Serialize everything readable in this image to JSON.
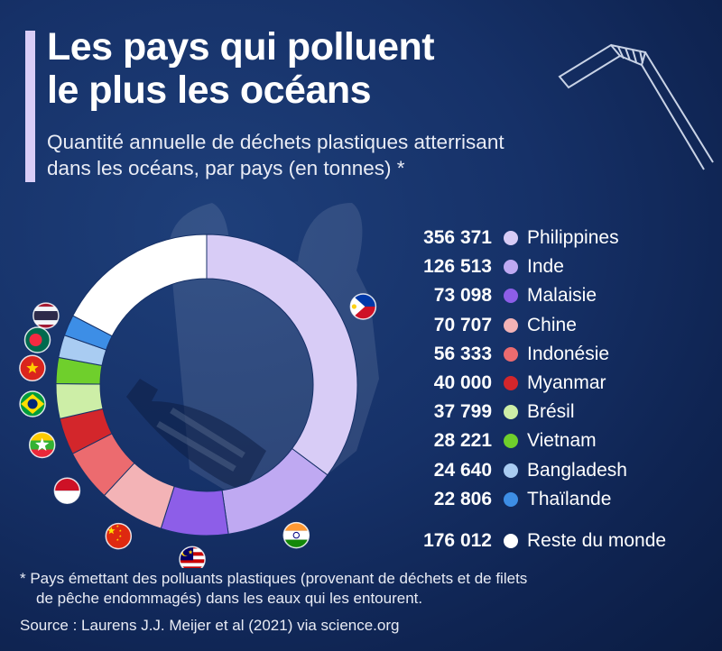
{
  "title_line1": "Les pays qui polluent",
  "title_line2": "le plus les océans",
  "subtitle_line1": "Quantité annuelle de déchets plastiques atterrisant",
  "subtitle_line2": "dans les océans, par pays (en tonnes) *",
  "footnote_line1": "* Pays émettant des polluants plastiques (provenant de déchets et de filets",
  "footnote_line2": "de pêche endommagés) dans les eaux qui les entourent.",
  "source": "Source : Laurens J.J. Meijer et al (2021) via science.org",
  "legend_values": [
    "356 371",
    "126 513",
    "73 098",
    "70 707",
    "56 333",
    "40 000",
    "37 799",
    "28 221",
    "24 640",
    "22 806",
    "176 012"
  ],
  "chart_data": {
    "type": "pie",
    "title": "Les pays qui polluent le plus les océans",
    "subtitle": "Quantité annuelle de déchets plastiques atterrisant dans les océans, par pays (en tonnes) *",
    "unit": "tonnes",
    "categories": [
      "Philippines",
      "Inde",
      "Malaisie",
      "Chine",
      "Indonésie",
      "Myanmar",
      "Brésil",
      "Vietnam",
      "Bangladesh",
      "Thaïlande",
      "Reste du monde"
    ],
    "values": [
      356371,
      126513,
      73098,
      70707,
      56333,
      40000,
      37799,
      28221,
      24640,
      22806,
      176012
    ],
    "colors": [
      "#d8ccf6",
      "#bfa9f2",
      "#8d5ee8",
      "#f3b3b6",
      "#ec6b6f",
      "#d3262b",
      "#cdeea7",
      "#6fcf2c",
      "#a9ccf2",
      "#3d8ee6",
      "#ffffff"
    ],
    "legend_placement": "right",
    "flags": [
      "Philippines",
      "Inde",
      "Malaisie",
      "Chine",
      "Indonésie",
      "Myanmar",
      "Brésil",
      "Vietnam",
      "Bangladesh",
      "Thaïlande"
    ]
  }
}
